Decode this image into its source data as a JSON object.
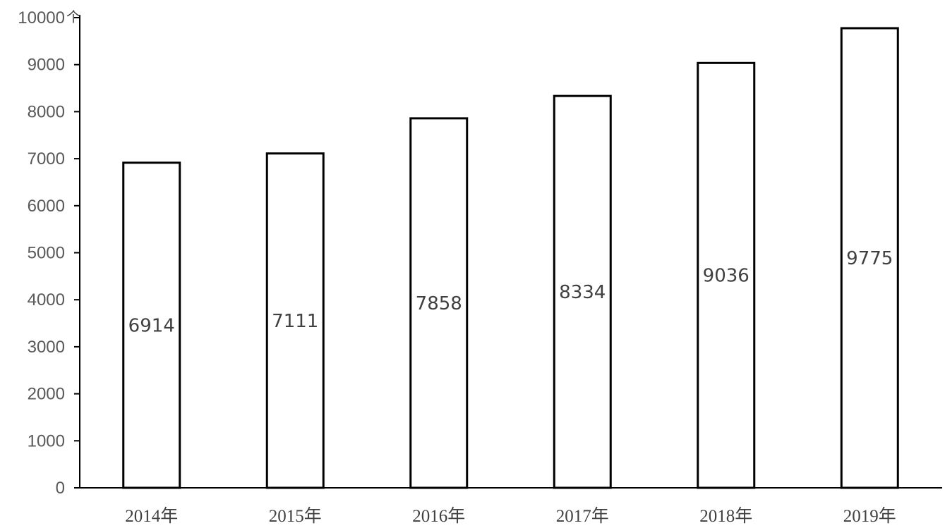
{
  "chart_data": {
    "type": "bar",
    "categories": [
      "2014年",
      "2015年",
      "2016年",
      "2017年",
      "2018年",
      "2019年"
    ],
    "values": [
      6914,
      7111,
      7858,
      8334,
      9036,
      9775
    ],
    "ylim": [
      0,
      10000
    ],
    "yticks": [
      0,
      1000,
      2000,
      3000,
      4000,
      5000,
      6000,
      7000,
      8000,
      9000,
      10000
    ],
    "yunit": "个",
    "grid": false,
    "legend": "none",
    "bar_fill": "#ffffff",
    "bar_stroke": "#000000",
    "axis_color": "#000000"
  }
}
